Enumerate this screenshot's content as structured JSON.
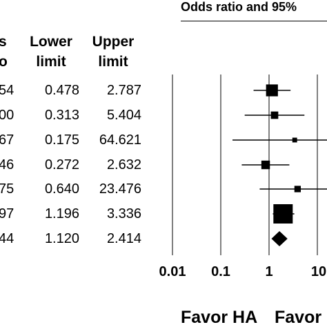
{
  "chart_data": {
    "type": "forest",
    "title": "Odds ratio and 95%",
    "columns": {
      "ratio_header": [
        "s",
        "o"
      ],
      "lower_header": [
        "Lower",
        "limit"
      ],
      "upper_header": [
        "Upper",
        "limit"
      ]
    },
    "rows": [
      {
        "ratio_fragment": "54",
        "lower": 0.478,
        "upper": 2.787,
        "lower_text": "0.478",
        "upper_text": "2.787",
        "point": 1.15,
        "weight": 0.55,
        "kind": "study"
      },
      {
        "ratio_fragment": "00",
        "lower": 0.313,
        "upper": 5.404,
        "lower_text": "0.313",
        "upper_text": "5.404",
        "point": 1.3,
        "weight": 0.28,
        "kind": "study"
      },
      {
        "ratio_fragment": "67",
        "lower": 0.175,
        "upper": 64.621,
        "lower_text": "0.175",
        "upper_text": "64.621",
        "point": 3.4,
        "weight": 0.12,
        "kind": "study"
      },
      {
        "ratio_fragment": "46",
        "lower": 0.272,
        "upper": 2.632,
        "lower_text": "0.272",
        "upper_text": "2.632",
        "point": 0.85,
        "weight": 0.35,
        "kind": "study"
      },
      {
        "ratio_fragment": "75",
        "lower": 0.64,
        "upper": 23.476,
        "lower_text": "0.640",
        "upper_text": "23.476",
        "point": 3.9,
        "weight": 0.22,
        "kind": "study"
      },
      {
        "ratio_fragment": "97",
        "lower": 1.196,
        "upper": 3.336,
        "lower_text": "1.196",
        "upper_text": "3.336",
        "point": 1.95,
        "weight": 1.0,
        "kind": "study"
      },
      {
        "ratio_fragment": "44",
        "lower": 1.12,
        "upper": 2.414,
        "lower_text": "1.120",
        "upper_text": "2.414",
        "point": 1.64,
        "weight": 1.0,
        "kind": "summary"
      }
    ],
    "x_scale": "log",
    "x_ticks": [
      0.01,
      0.1,
      1,
      10
    ],
    "x_tick_labels": [
      "0.01",
      "0.1",
      "1",
      "10"
    ],
    "grid": true,
    "favor_labels": [
      "Favor HA",
      "Favor"
    ]
  }
}
